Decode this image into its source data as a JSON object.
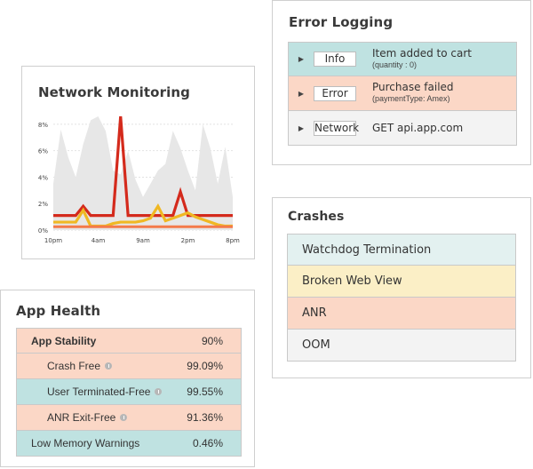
{
  "colors": {
    "teal": "#bfe2e1",
    "salmon": "#fbd7c6",
    "light_gray": "#f3f3f3",
    "light_teal": "#e3f1f0",
    "light_yellow": "#fbefc6",
    "red_line": "#d42a1c",
    "yellow_line": "#f0b823",
    "orange_line": "#f47a4a",
    "area_fill": "#e7e7e7"
  },
  "error_logging": {
    "title": "Error Logging",
    "rows": [
      {
        "level": "Info",
        "message": "Item added to cart",
        "detail": "(quantity : 0)",
        "color": "#bfe2e1",
        "icon": "chevron-right-icon"
      },
      {
        "level": "Error",
        "message": "Purchase failed",
        "detail": "(paymentType: Amex)",
        "color": "#fbd7c6",
        "icon": "chevron-right-icon"
      },
      {
        "level": "Network",
        "message": "GET api.app.com",
        "detail": "",
        "color": "#f3f3f3",
        "icon": "chevron-right-icon"
      }
    ]
  },
  "network_monitoring": {
    "title": "Network Monitoring"
  },
  "chart_data": {
    "type": "line",
    "title": "Network Monitoring",
    "x_ticks": [
      "10pm",
      "4am",
      "9am",
      "2pm",
      "8pm"
    ],
    "y_ticks": [
      "0%",
      "2%",
      "4%",
      "6%",
      "8%"
    ],
    "ylim": [
      0,
      9
    ],
    "grid": true,
    "x": [
      0,
      1,
      2,
      3,
      4,
      5,
      6,
      7,
      8,
      9,
      10,
      11,
      12,
      13,
      14,
      15,
      16,
      17,
      18,
      19,
      20,
      21,
      22,
      23,
      24
    ],
    "series": [
      {
        "values": [
          1.1,
          1.1,
          1.1,
          1.1,
          1.8,
          1.1,
          1.1,
          1.1,
          1.1,
          8.6,
          1.1,
          1.1,
          1.1,
          1.1,
          1.1,
          1.1,
          1.1,
          2.9,
          1.1,
          1.1,
          1.1,
          1.1,
          1.1,
          1.1,
          1.1
        ],
        "color": "#d42a1c"
      },
      {
        "values": [
          0.6,
          0.6,
          0.6,
          0.6,
          1.5,
          0.3,
          0.3,
          0.3,
          0.5,
          0.6,
          0.6,
          0.6,
          0.7,
          0.9,
          1.8,
          0.7,
          0.9,
          1.1,
          1.3,
          1.0,
          0.8,
          0.6,
          0.4,
          0.3,
          0.3
        ],
        "color": "#f0b823"
      },
      {
        "values": [
          0.25,
          0.25,
          0.25,
          0.25,
          0.25,
          0.25,
          0.25,
          0.25,
          0.25,
          0.25,
          0.25,
          0.25,
          0.25,
          0.25,
          0.25,
          0.25,
          0.25,
          0.25,
          0.25,
          0.25,
          0.25,
          0.25,
          0.25,
          0.25,
          0.25
        ],
        "color": "#f47a4a"
      },
      {
        "values": [
          3.5,
          7.6,
          5.5,
          4.0,
          6.5,
          8.3,
          8.6,
          7.5,
          4.5,
          4.2,
          6.0,
          3.8,
          2.5,
          3.5,
          4.5,
          5.0,
          7.5,
          6.2,
          4.5,
          3.0,
          8.0,
          6.2,
          3.5,
          6.3,
          2.5
        ],
        "color": "#e7e7e7",
        "fill": true
      }
    ]
  },
  "crashes": {
    "title": "Crashes",
    "rows": [
      {
        "label": "Watchdog Termination",
        "color": "#e3f1f0"
      },
      {
        "label": "Broken Web View",
        "color": "#fbefc6"
      },
      {
        "label": "ANR",
        "color": "#fbd7c6"
      },
      {
        "label": "OOM",
        "color": "#f3f3f3"
      }
    ]
  },
  "app_health": {
    "title": "App Health",
    "rows": [
      {
        "label": "App Stability",
        "value": "90%",
        "kind": "top",
        "color": "#fbd7c6",
        "info": false
      },
      {
        "label": "Crash Free",
        "value": "99.09%",
        "kind": "sub",
        "color": "#fbd7c6",
        "info": true
      },
      {
        "label": "User Terminated-Free",
        "value": "99.55%",
        "kind": "sub",
        "color": "#bfe2e1",
        "info": true
      },
      {
        "label": "ANR Exit-Free",
        "value": "91.36%",
        "kind": "sub",
        "color": "#fbd7c6",
        "info": true
      },
      {
        "label": "Low Memory Warnings",
        "value": "0.46%",
        "kind": "top-plain",
        "color": "#bfe2e1",
        "info": false
      }
    ]
  }
}
